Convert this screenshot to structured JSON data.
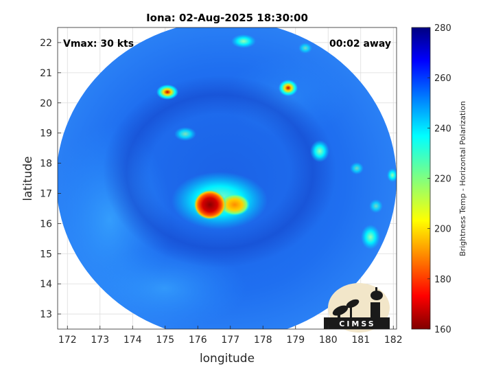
{
  "title": "Iona: 02-Aug-2025 18:30:00",
  "annotations": {
    "vmax": "Vmax: 30 kts",
    "away": "00:02 away"
  },
  "xaxis": {
    "label": "longitude",
    "range": [
      171.7,
      182.1
    ],
    "ticks": [
      "172",
      "173",
      "174",
      "175",
      "176",
      "177",
      "178",
      "179",
      "180",
      "181",
      "182"
    ]
  },
  "yaxis": {
    "label": "latitude",
    "range": [
      12.5,
      22.5
    ],
    "ticks": [
      "13",
      "14",
      "15",
      "16",
      "17",
      "18",
      "19",
      "20",
      "21",
      "22"
    ]
  },
  "colorbar": {
    "label": "Brightness Temp - Horizontal Polarization",
    "range": [
      160,
      280
    ],
    "ticks": [
      "280",
      "260",
      "240",
      "220",
      "200",
      "180",
      "160"
    ],
    "colormap": "jet"
  },
  "logo": {
    "text": "CIMSS"
  },
  "map": {
    "type": "microwave-brightness-temperature",
    "swath_center": [
      176.9,
      17.5
    ],
    "features": [
      {
        "name": "core",
        "lon": 176.4,
        "lat": 16.6,
        "temp": 168
      },
      {
        "name": "core-east",
        "lon": 177.3,
        "lat": 16.6,
        "temp": 212
      },
      {
        "name": "band-1",
        "lon": 175.2,
        "lat": 20.3,
        "temp": 205
      },
      {
        "name": "band-2",
        "lon": 178.8,
        "lat": 20.4,
        "temp": 200
      },
      {
        "name": "band-3",
        "lon": 177.3,
        "lat": 22.0,
        "temp": 218
      },
      {
        "name": "band-4",
        "lon": 179.3,
        "lat": 18.4,
        "temp": 228
      },
      {
        "name": "band-5",
        "lon": 181.0,
        "lat": 15.5,
        "temp": 222
      },
      {
        "name": "band-6",
        "lon": 182.0,
        "lat": 17.6,
        "temp": 228
      },
      {
        "name": "band-7",
        "lon": 175.4,
        "lat": 18.9,
        "temp": 236
      }
    ]
  }
}
